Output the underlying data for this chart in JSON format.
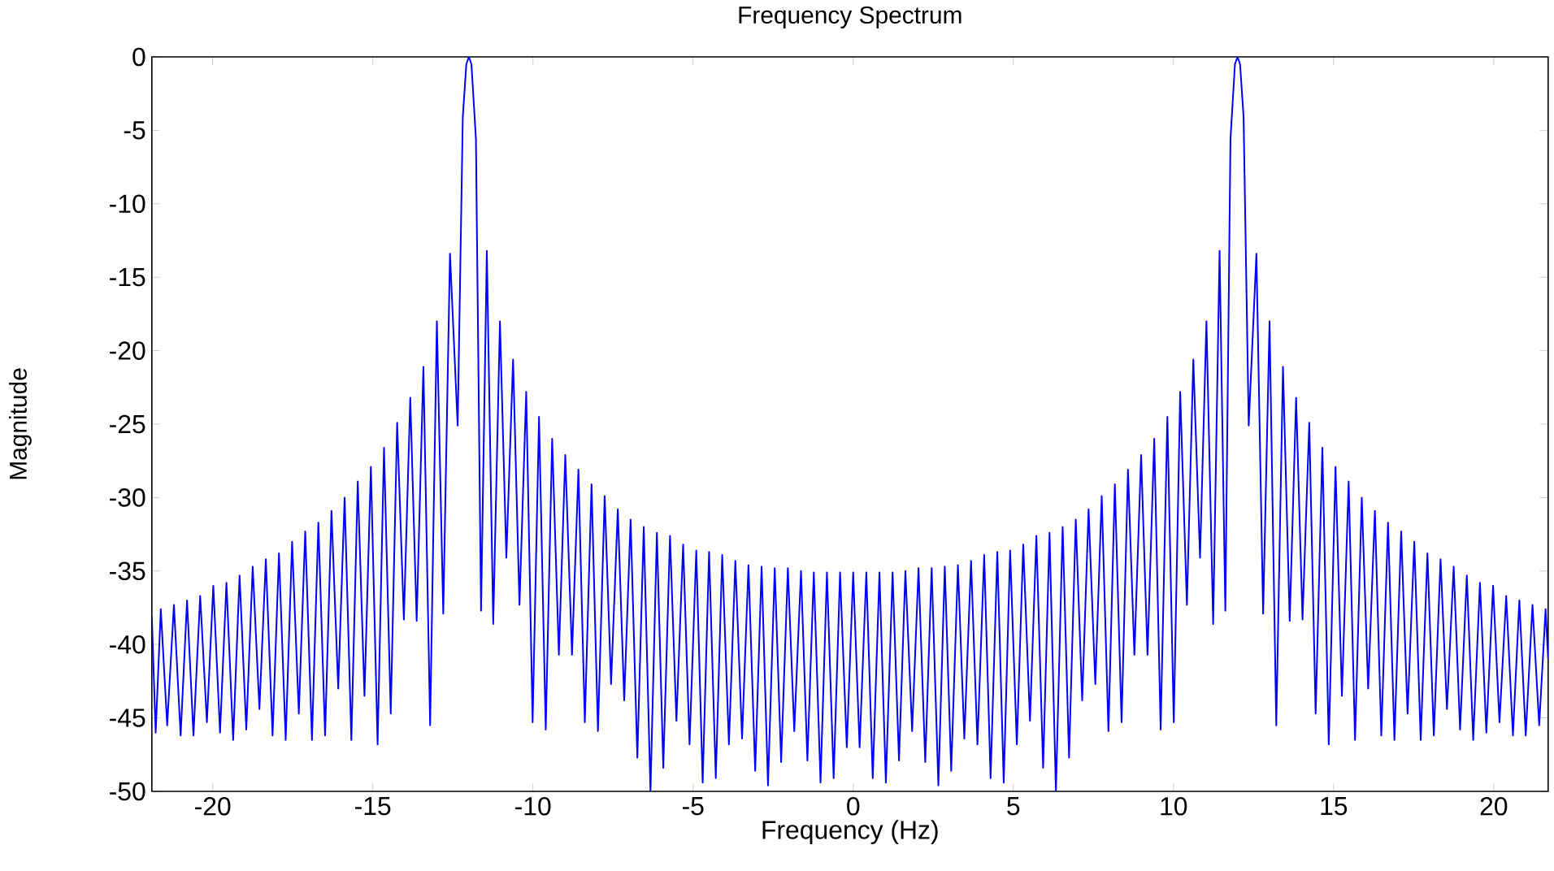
{
  "chart_data": {
    "type": "line",
    "title": "Frequency Spectrum",
    "xlabel": "Frequency (Hz)",
    "ylabel": "Magnitude",
    "color": "#0000ff",
    "xlim": [
      -21.9,
      21.7
    ],
    "ylim": [
      -50,
      0
    ],
    "xticks": [
      -20,
      -15,
      -10,
      -5,
      0,
      5,
      10,
      15,
      20
    ],
    "yticks": [
      0,
      -5,
      -10,
      -15,
      -20,
      -25,
      -30,
      -35,
      -40,
      -45,
      -50
    ],
    "x": [
      -21.9,
      -21.78,
      -21.62,
      -21.42,
      -21.21,
      -21.0,
      -20.8,
      -20.6,
      -20.39,
      -20.18,
      -19.98,
      -19.77,
      -19.57,
      -19.36,
      -19.16,
      -18.95,
      -18.75,
      -18.54,
      -18.34,
      -18.13,
      -17.93,
      -17.72,
      -17.52,
      -17.31,
      -17.11,
      -16.9,
      -16.7,
      -16.49,
      -16.29,
      -16.08,
      -15.88,
      -15.67,
      -15.47,
      -15.26,
      -15.06,
      -14.85,
      -14.65,
      -14.44,
      -14.24,
      -14.03,
      -13.83,
      -13.63,
      -13.42,
      -13.21,
      -13.0,
      -12.8,
      -12.59,
      -12.35,
      -12.19,
      -12.08,
      -12.0,
      -11.92,
      -11.78,
      -11.62,
      -11.44,
      -11.24,
      -11.03,
      -10.83,
      -10.62,
      -10.42,
      -10.21,
      -10.01,
      -9.81,
      -9.6,
      -9.4,
      -9.19,
      -8.99,
      -8.78,
      -8.58,
      -8.38,
      -8.17,
      -7.97,
      -7.76,
      -7.56,
      -7.35,
      -7.15,
      -6.95,
      -6.74,
      -6.54,
      -6.33,
      -6.13,
      -5.93,
      -5.72,
      -5.52,
      -5.31,
      -5.11,
      -4.9,
      -4.7,
      -4.5,
      -4.29,
      -4.09,
      -3.88,
      -3.68,
      -3.47,
      -3.27,
      -3.06,
      -2.86,
      -2.66,
      -2.45,
      -2.25,
      -2.04,
      -1.84,
      -1.63,
      -1.43,
      -1.23,
      -1.02,
      -0.82,
      -0.61,
      -0.41,
      -0.2,
      0,
      0.2,
      0.41,
      0.61,
      0.82,
      1.02,
      1.23,
      1.43,
      1.63,
      1.84,
      2.04,
      2.25,
      2.45,
      2.66,
      2.86,
      3.06,
      3.27,
      3.47,
      3.68,
      3.88,
      4.09,
      4.29,
      4.5,
      4.7,
      4.9,
      5.11,
      5.31,
      5.52,
      5.72,
      5.93,
      6.13,
      6.33,
      6.54,
      6.74,
      6.95,
      7.15,
      7.35,
      7.56,
      7.76,
      7.97,
      8.17,
      8.38,
      8.58,
      8.78,
      8.99,
      9.19,
      9.4,
      9.6,
      9.81,
      10.01,
      10.21,
      10.42,
      10.62,
      10.83,
      11.03,
      11.24,
      11.44,
      11.62,
      11.78,
      11.92,
      12.0,
      12.08,
      12.19,
      12.35,
      12.59,
      12.8,
      13.0,
      13.21,
      13.42,
      13.63,
      13.83,
      14.03,
      14.24,
      14.44,
      14.65,
      14.85,
      15.06,
      15.26,
      15.47,
      15.67,
      15.88,
      16.08,
      16.29,
      16.49,
      16.7,
      16.9,
      17.11,
      17.31,
      17.52,
      17.72,
      17.93,
      18.13,
      18.34,
      18.54,
      18.75,
      18.95,
      19.16,
      19.36,
      19.57,
      19.77,
      19.98,
      20.18,
      20.39,
      20.6,
      20.8,
      21.0,
      21.21,
      21.42,
      21.62,
      21.7
    ],
    "values": [
      -38.1,
      -46.0,
      -37.6,
      -45.5,
      -37.3,
      -46.2,
      -37.0,
      -46.2,
      -36.7,
      -45.3,
      -36.0,
      -46.0,
      -35.8,
      -46.5,
      -35.3,
      -45.8,
      -34.7,
      -44.4,
      -34.2,
      -46.2,
      -33.8,
      -46.5,
      -33.0,
      -44.7,
      -32.3,
      -46.5,
      -31.7,
      -46.2,
      -30.9,
      -43.0,
      -30.0,
      -46.5,
      -28.9,
      -43.5,
      -27.9,
      -46.8,
      -26.6,
      -44.7,
      -24.9,
      -38.3,
      -23.2,
      -38.4,
      -21.1,
      -45.5,
      -18.0,
      -37.9,
      -13.4,
      -25.1,
      -4.1,
      -0.5,
      0,
      -0.5,
      -5.6,
      -37.7,
      -13.2,
      -38.6,
      -18.0,
      -34.1,
      -20.6,
      -37.3,
      -22.8,
      -45.3,
      -24.5,
      -45.8,
      -26.0,
      -40.7,
      -27.1,
      -40.7,
      -28.1,
      -45.3,
      -29.1,
      -45.9,
      -29.9,
      -42.7,
      -30.8,
      -43.8,
      -31.5,
      -47.7,
      -32.0,
      -50,
      -32.4,
      -48.4,
      -32.6,
      -45.2,
      -33.2,
      -46.8,
      -33.6,
      -49.4,
      -33.7,
      -49.1,
      -33.9,
      -46.8,
      -34.3,
      -46.4,
      -34.6,
      -48.6,
      -34.7,
      -49.6,
      -34.8,
      -48.0,
      -34.8,
      -45.9,
      -35.0,
      -47.9,
      -35.1,
      -49.4,
      -35.1,
      -49.1,
      -35.1,
      -47.0,
      -35.1,
      -47.0,
      -35.1,
      -49.1,
      -35.1,
      -49.4,
      -35.1,
      -47.9,
      -35.0,
      -45.9,
      -34.8,
      -48.0,
      -34.8,
      -49.6,
      -34.7,
      -48.6,
      -34.6,
      -46.4,
      -34.3,
      -46.8,
      -33.9,
      -49.1,
      -33.7,
      -49.4,
      -33.6,
      -46.8,
      -33.2,
      -45.2,
      -32.6,
      -48.4,
      -32.4,
      -50,
      -32.0,
      -47.7,
      -31.5,
      -43.8,
      -30.8,
      -42.7,
      -29.9,
      -45.9,
      -29.1,
      -45.3,
      -28.1,
      -40.7,
      -27.1,
      -40.7,
      -26.0,
      -45.8,
      -24.5,
      -45.3,
      -22.8,
      -37.3,
      -20.6,
      -34.1,
      -18.0,
      -38.6,
      -13.2,
      -37.7,
      -5.6,
      -0.5,
      0,
      -0.5,
      -4.1,
      -25.1,
      -13.4,
      -37.9,
      -18.0,
      -45.5,
      -21.1,
      -38.4,
      -23.2,
      -38.3,
      -24.9,
      -44.7,
      -26.6,
      -46.8,
      -27.9,
      -43.5,
      -28.9,
      -46.5,
      -30.0,
      -43.0,
      -30.9,
      -46.2,
      -31.7,
      -46.5,
      -32.3,
      -44.7,
      -33.0,
      -46.5,
      -33.8,
      -46.2,
      -34.2,
      -44.4,
      -34.7,
      -45.8,
      -35.3,
      -46.5,
      -35.8,
      -46.0,
      -36.0,
      -45.3,
      -36.7,
      -46.2,
      -37.0,
      -46.2,
      -37.3,
      -45.5,
      -37.6,
      -41.0
    ]
  }
}
